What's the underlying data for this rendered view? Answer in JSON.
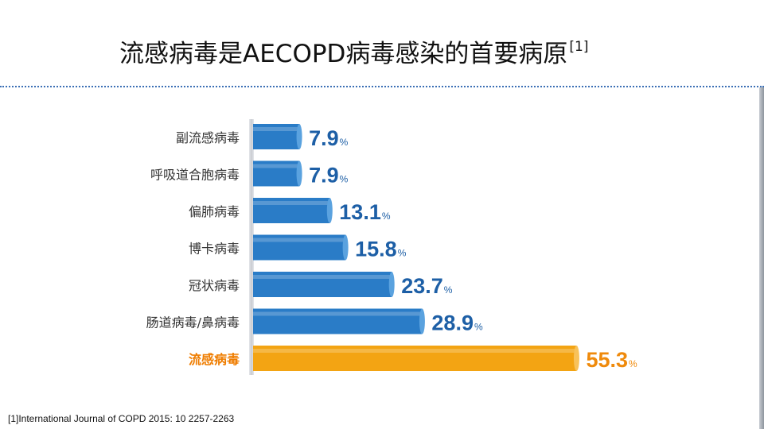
{
  "slide": {
    "title": "流感病毒是AECOPD病毒感染的首要病原",
    "title_ref": "[1]",
    "footnote": "[1]International  Journal  of COPD 2015:  10 2257-2263"
  },
  "colors": {
    "bar_blue": "#2a7cc7",
    "bar_highlight": "#f3a413",
    "value_blue": "#1d5fa6",
    "value_highlight": "#ef8a0c",
    "category_text": "#333333",
    "category_highlight": "#ef7d00"
  },
  "chart_data": {
    "type": "bar",
    "orientation": "horizontal",
    "categories": [
      "副流感病毒",
      "呼吸道合胞病毒",
      "偏肺病毒",
      "博卡病毒",
      "冠状病毒",
      "肠道病毒/鼻病毒",
      "流感病毒"
    ],
    "values": [
      7.9,
      7.9,
      13.1,
      15.8,
      23.7,
      28.9,
      55.3
    ],
    "value_labels": [
      "7.9",
      "7.9",
      "13.1",
      "15.8",
      "23.7",
      "28.9",
      "55.3"
    ],
    "unit": "%",
    "highlight_index": 6,
    "title": "",
    "xlabel": "",
    "ylabel": "",
    "grid": false
  }
}
